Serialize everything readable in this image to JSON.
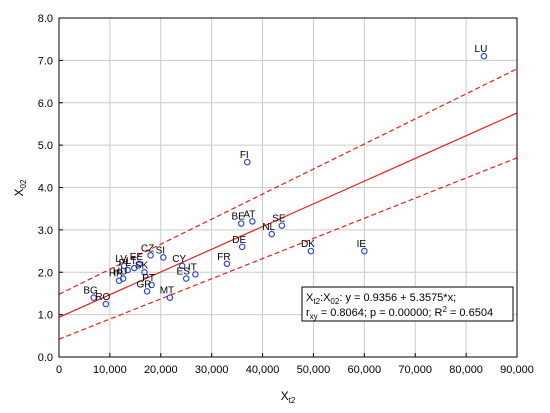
{
  "chart_data": {
    "type": "scatter",
    "xlabel_main": "X",
    "xlabel_sub": "t2",
    "ylabel_main": "X",
    "ylabel_sub": "02",
    "xlim": [
      0,
      90000
    ],
    "ylim": [
      0,
      8
    ],
    "xticks": [
      0,
      10000,
      20000,
      30000,
      40000,
      50000,
      60000,
      70000,
      80000,
      90000
    ],
    "xtick_labels": [
      "0",
      "10,000",
      "20,000",
      "30,000",
      "40,000",
      "50,000",
      "60,000",
      "70,000",
      "80,000",
      "90,000"
    ],
    "yticks": [
      0,
      1,
      2,
      3,
      4,
      5,
      6,
      7,
      8
    ],
    "ytick_labels": [
      "0.0",
      "1.0",
      "2.0",
      "3.0",
      "4.0",
      "5.0",
      "6.0",
      "7.0",
      "8.0"
    ],
    "grid": true,
    "regression": {
      "intercept": 0.9356,
      "slope": 5.3575e-05
    },
    "confidence_band": {
      "low_at_xmin": 0.42,
      "high_at_xmin": 1.48,
      "low_at_xmax": 4.7,
      "high_at_xmax": 6.8
    },
    "colors": {
      "points": "#1f3fd6",
      "line": "#ee1c1c",
      "grid": "#cccccc"
    },
    "points": [
      {
        "label": "LU",
        "x": 83500,
        "y": 7.1
      },
      {
        "label": "FI",
        "x": 37000,
        "y": 4.6
      },
      {
        "label": "BE",
        "x": 35800,
        "y": 3.15
      },
      {
        "label": "AT",
        "x": 38000,
        "y": 3.2
      },
      {
        "label": "SE",
        "x": 43800,
        "y": 3.1
      },
      {
        "label": "NL",
        "x": 41800,
        "y": 2.9
      },
      {
        "label": "DE",
        "x": 36000,
        "y": 2.6
      },
      {
        "label": "DK",
        "x": 49500,
        "y": 2.5
      },
      {
        "label": "IE",
        "x": 60000,
        "y": 2.5
      },
      {
        "label": "FR",
        "x": 33000,
        "y": 2.2
      },
      {
        "label": "CZ",
        "x": 18000,
        "y": 2.4
      },
      {
        "label": "SI",
        "x": 20500,
        "y": 2.35
      },
      {
        "label": "CY",
        "x": 24200,
        "y": 2.15
      },
      {
        "label": "EE",
        "x": 15800,
        "y": 2.2
      },
      {
        "label": "LV",
        "x": 12800,
        "y": 2.15
      },
      {
        "label": "LT",
        "x": 14800,
        "y": 2.1
      },
      {
        "label": "PL",
        "x": 13500,
        "y": 2.05
      },
      {
        "label": "SK",
        "x": 16800,
        "y": 2.0
      },
      {
        "label": "HU",
        "x": 12600,
        "y": 1.85
      },
      {
        "label": "HR",
        "x": 11800,
        "y": 1.8
      },
      {
        "label": "ES",
        "x": 25000,
        "y": 1.85
      },
      {
        "label": "IT",
        "x": 26800,
        "y": 1.95
      },
      {
        "label": "PT",
        "x": 18200,
        "y": 1.7
      },
      {
        "label": "GR",
        "x": 17300,
        "y": 1.55
      },
      {
        "label": "MT",
        "x": 21800,
        "y": 1.4
      },
      {
        "label": "BG",
        "x": 6800,
        "y": 1.4
      },
      {
        "label": "RO",
        "x": 9200,
        "y": 1.25
      }
    ],
    "legend": {
      "line1_pre": "X",
      "line1_sub1": "t2",
      "line1_mid": ":X",
      "line1_sub2": "02",
      "line1_post": ":   y = 0.9356 + 5.3575*x;",
      "line2_pre": "r",
      "line2_sub": "xy",
      "line2_mid": " = 0.8064; p = 0.00000; R",
      "line2_sup": "2",
      "line2_post": " = 0.6504",
      "position": "bottom-right"
    }
  }
}
